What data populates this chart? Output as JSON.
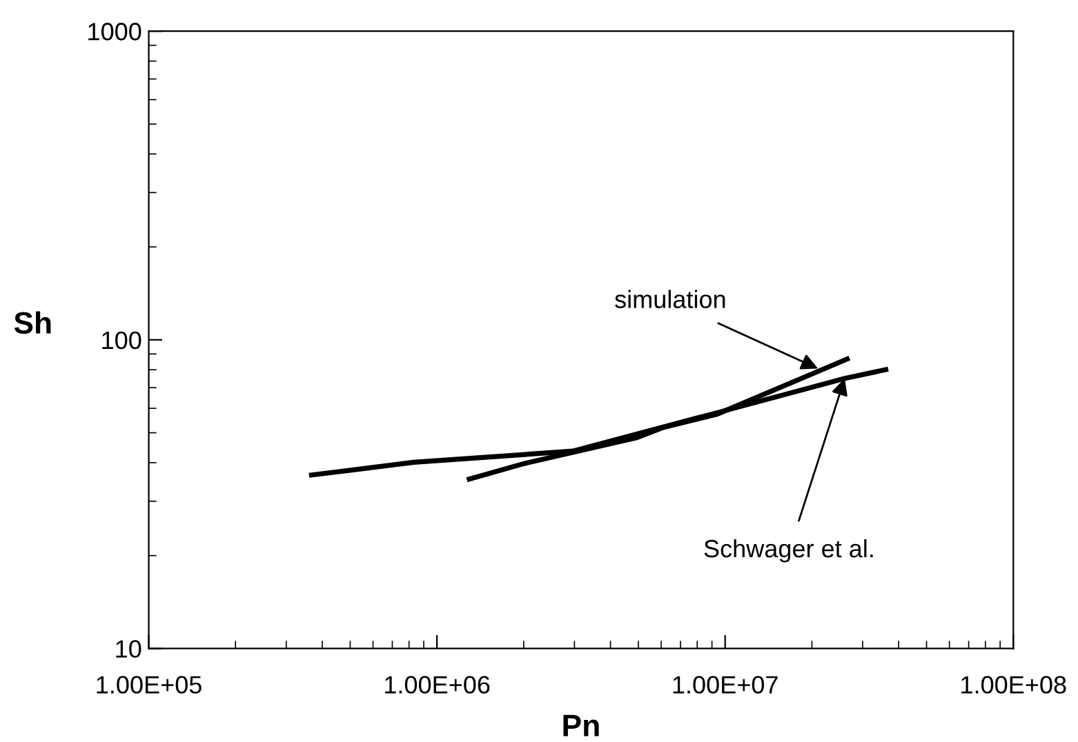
{
  "chart_data": {
    "type": "line",
    "xlabel": "Pn",
    "ylabel": "Sh",
    "log": "xy",
    "grid": false,
    "marker": "none",
    "line_style": "solid",
    "xlim": [
      100000,
      100000000
    ],
    "ylim": [
      10,
      1000
    ],
    "xticks": [
      {
        "value": 100000,
        "label": "1.00E+05"
      },
      {
        "value": 1000000,
        "label": "1.00E+06"
      },
      {
        "value": 10000000,
        "label": "1.00E+07"
      },
      {
        "value": 100000000,
        "label": "1.00E+08"
      }
    ],
    "yticks": [
      10,
      100,
      1000
    ],
    "series": [
      {
        "color": "#000000",
        "x": [
          360000,
          830000,
          2960000,
          9800000,
          26000000,
          36800000
        ],
        "values": [
          36.4,
          40.1,
          43.6,
          58.7,
          75,
          80.4
        ]
      },
      {
        "color": "#000000",
        "x": [
          1270000,
          2000000,
          4900000,
          6050000,
          9400000,
          27000000
        ],
        "values": [
          35.2,
          39.7,
          48.1,
          51.9,
          57.5,
          87.3
        ]
      }
    ],
    "annotations": [
      {
        "text": "simulation",
        "x": 21000000,
        "y": 80.7
      },
      {
        "text": "Schwager et al.",
        "x": 26000000,
        "y": 75
      }
    ]
  }
}
